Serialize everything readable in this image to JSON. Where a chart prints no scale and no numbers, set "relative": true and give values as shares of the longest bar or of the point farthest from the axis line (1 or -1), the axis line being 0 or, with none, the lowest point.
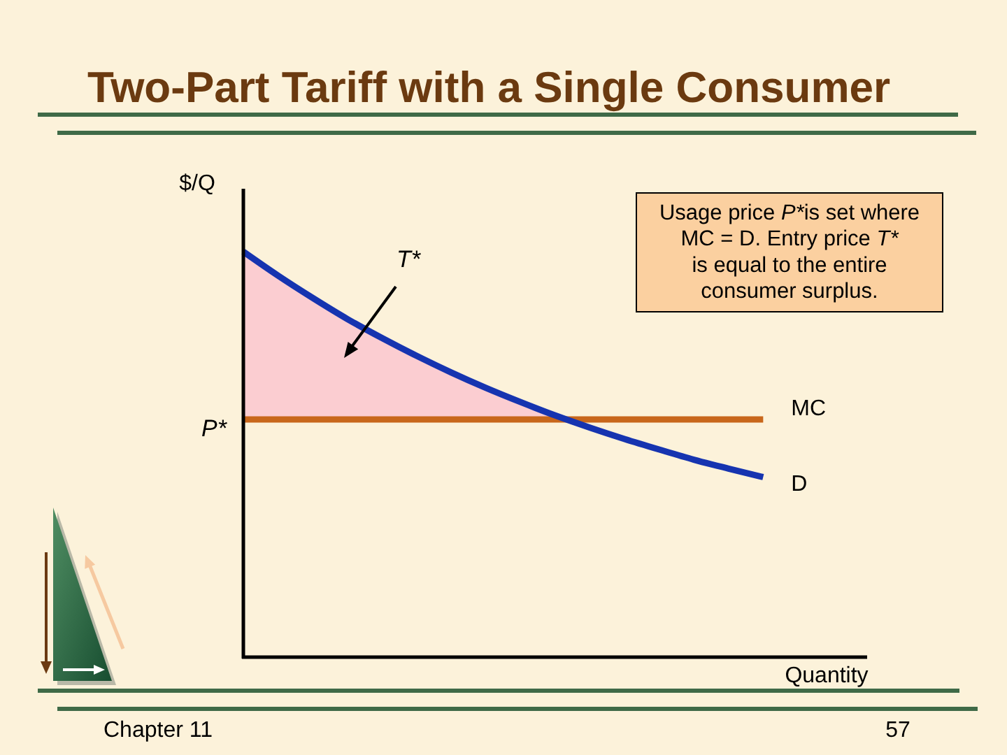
{
  "chart_data": {
    "type": "line",
    "title": "Two-Part Tariff with a Single Consumer",
    "xlabel": "Quantity",
    "ylabel": "$/Q",
    "relative": true,
    "categories": [
      null,
      null,
      null,
      null,
      null,
      null,
      null,
      null,
      null,
      null,
      null,
      null,
      null,
      null,
      null,
      null,
      null,
      null,
      null
    ],
    "series": [
      {
        "name": "MC",
        "color": "#c8671b",
        "values": [
          0.586,
          0.586,
          0.586,
          0.586,
          0.586,
          0.586,
          0.586,
          0.586,
          0.586,
          0.586,
          0.586,
          0.586,
          0.586,
          0.586,
          0.586,
          0.586,
          null,
          null,
          null
        ]
      },
      {
        "name": "D",
        "color": "#1634b0",
        "values": [
          1,
          0.941,
          0.886,
          0.834,
          0.787,
          0.743,
          0.702,
          0.664,
          0.629,
          0.596,
          0.566,
          0.538,
          0.512,
          0.487,
          0.465,
          0.444,
          null,
          null,
          null
        ],
        "lower": [
          0.586,
          0.586,
          0.586,
          0.586,
          0.586,
          0.586,
          0.586,
          0.586,
          0.586,
          0.586,
          null,
          null,
          null,
          null,
          null,
          null,
          null,
          null,
          null
        ],
        "upper": [
          1,
          0.941,
          0.886,
          0.834,
          0.787,
          0.743,
          0.702,
          0.664,
          0.629,
          0.596,
          null,
          null,
          null,
          null,
          null,
          null,
          null,
          null,
          null
        ]
      }
    ],
    "annotations": [
      "T*",
      "P*",
      "Usage price P*is set where\nMC = D.  Entry price T*\nis equal to the entire\nconsumer surplus.",
      "Chapter 11",
      "57"
    ]
  }
}
